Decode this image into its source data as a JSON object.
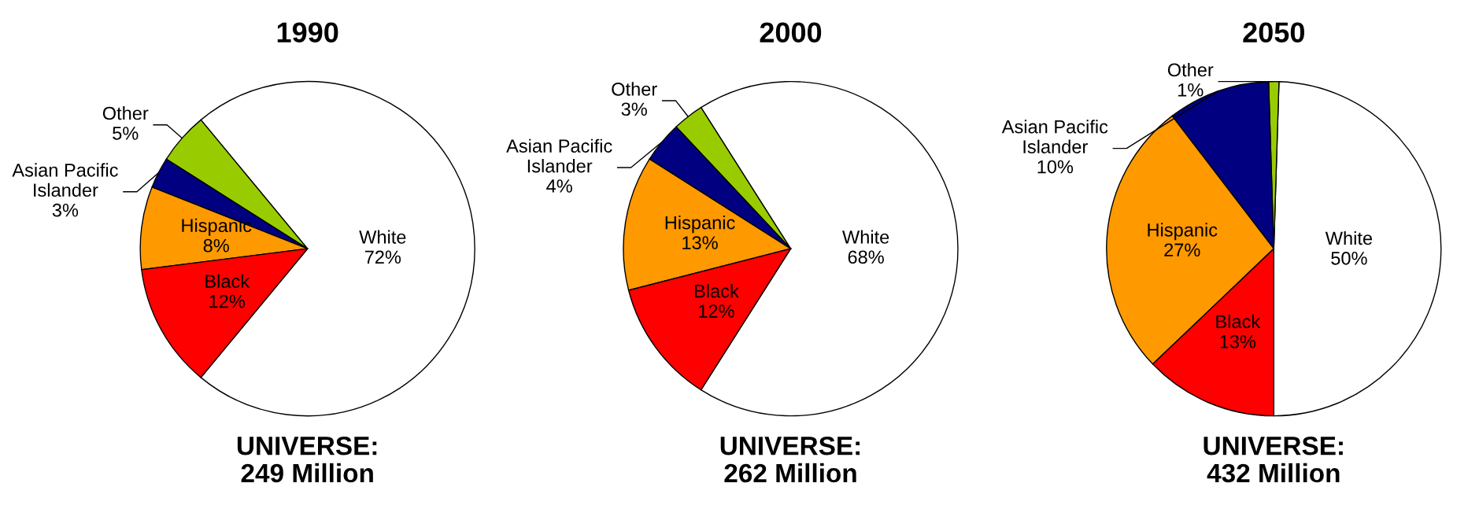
{
  "chart_data": [
    {
      "type": "pie",
      "title": "1990",
      "categories": [
        "White",
        "Other",
        "Asian Pacific\nIslander",
        "Hispanic",
        "Black"
      ],
      "values": [
        72,
        5,
        3,
        8,
        12
      ],
      "colors": [
        "#ffffff",
        "#99cc00",
        "#000080",
        "#ff9900",
        "#ff0000"
      ],
      "value_labels": [
        "72%",
        "5%",
        "3%",
        "8%",
        "12%"
      ],
      "annotations": [
        "UNIVERSE:\n249 Million"
      ]
    },
    {
      "type": "pie",
      "title": "2000",
      "categories": [
        "White",
        "Other",
        "Asian Pacific\nIslander",
        "Hispanic",
        "Black"
      ],
      "values": [
        68,
        3,
        4,
        13,
        12
      ],
      "colors": [
        "#ffffff",
        "#99cc00",
        "#000080",
        "#ff9900",
        "#ff0000"
      ],
      "value_labels": [
        "68%",
        "3%",
        "4%",
        "13%",
        "12%"
      ],
      "annotations": [
        "UNIVERSE:\n262 Million"
      ]
    },
    {
      "type": "pie",
      "title": "2050",
      "categories": [
        "White",
        "Other",
        "Asian Pacific\nIslander",
        "Hispanic",
        "Black"
      ],
      "values": [
        50,
        1,
        10,
        27,
        13
      ],
      "colors": [
        "#ffffff",
        "#99cc00",
        "#000080",
        "#ff9900",
        "#ff0000"
      ],
      "value_labels": [
        "50%",
        "1%",
        "10%",
        "27%",
        "13%"
      ],
      "annotations": [
        "UNIVERSE:\n432 Million"
      ]
    }
  ]
}
